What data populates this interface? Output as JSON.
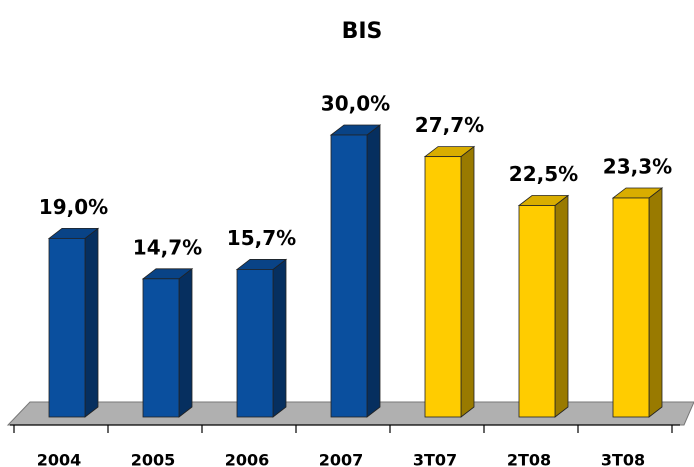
{
  "chart_data": {
    "type": "bar3d",
    "title": "BIS",
    "categories": [
      "2004",
      "2005",
      "2006",
      "2007",
      "3T07",
      "2T08",
      "3T08"
    ],
    "values": [
      19.0,
      14.7,
      15.7,
      30.0,
      27.7,
      22.5,
      23.3
    ],
    "value_labels": [
      "19,0%",
      "14,7%",
      "15,7%",
      "30,0%",
      "27,7%",
      "22,5%",
      "23,3%"
    ],
    "colors": [
      "#0a4f9e",
      "#0a4f9e",
      "#0a4f9e",
      "#0a4f9e",
      "#ffcc00",
      "#ffcc00",
      "#ffcc00"
    ],
    "ylim": [
      0,
      30
    ]
  }
}
